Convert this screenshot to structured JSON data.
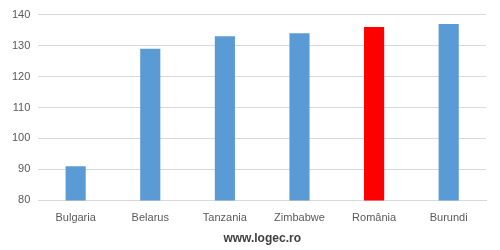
{
  "chart_data": {
    "type": "bar",
    "x_label": "www.logec.ro",
    "categories": [
      "Bulgaria",
      "Belarus",
      "Tanzania",
      "Zimbabwe",
      "România",
      "Burundi"
    ],
    "values": [
      91,
      129,
      133,
      134,
      136,
      137
    ],
    "colors": [
      "#5b9bd5",
      "#5b9bd5",
      "#5b9bd5",
      "#5b9bd5",
      "#ff0000",
      "#5b9bd5"
    ],
    "ylim": [
      80,
      140
    ],
    "yticks": [
      80,
      90,
      100,
      110,
      120,
      130,
      140
    ],
    "grid": true
  }
}
